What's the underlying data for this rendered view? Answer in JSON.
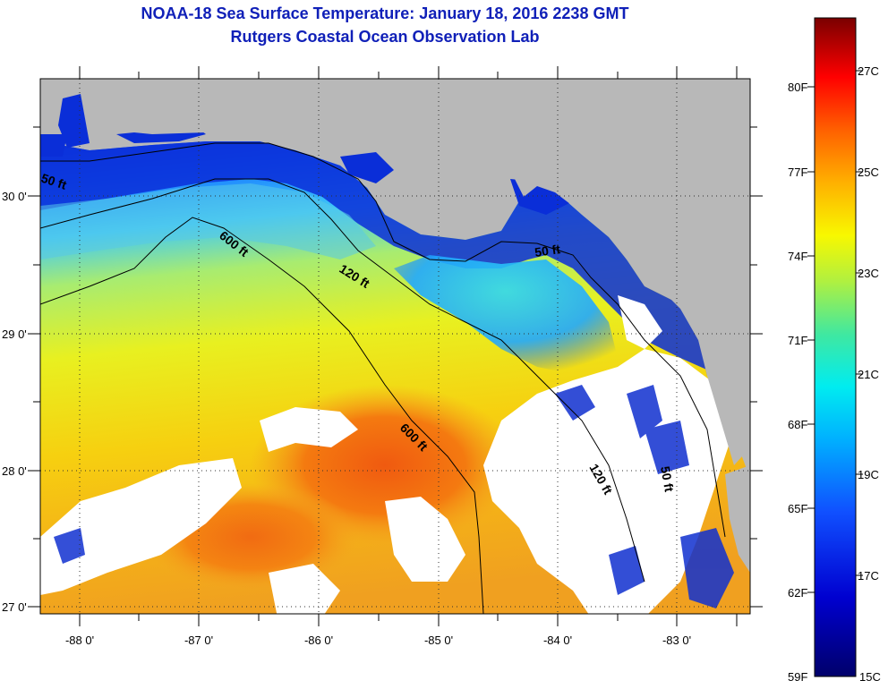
{
  "header": {
    "title": "NOAA-18 Sea Surface Temperature:  January 18, 2016 2238 GMT",
    "subtitle": "Rutgers Coastal Ocean Observation Lab"
  },
  "map": {
    "lon_labels": [
      "-88 0'",
      "-87 0'",
      "-86 0'",
      "-85 0'",
      "-84 0'",
      "-83 0'"
    ],
    "lat_labels": [
      "30 0'",
      "29 0'",
      "28 0'",
      "27 0'"
    ],
    "contours": {
      "c50_west": "50 ft",
      "c50_east": "50 ft",
      "c50_south": "50 ft",
      "c120_north": "120 ft",
      "c120_south": "120 ft",
      "c600_north": "600 ft",
      "c600_south": "600 ft"
    }
  },
  "colorbar": {
    "f_labels": [
      "80F",
      "77F",
      "74F",
      "71F",
      "68F",
      "65F",
      "62F",
      "59F"
    ],
    "c_labels": [
      "27C",
      "25C",
      "23C",
      "21C",
      "19C",
      "17C",
      "15C"
    ]
  }
}
